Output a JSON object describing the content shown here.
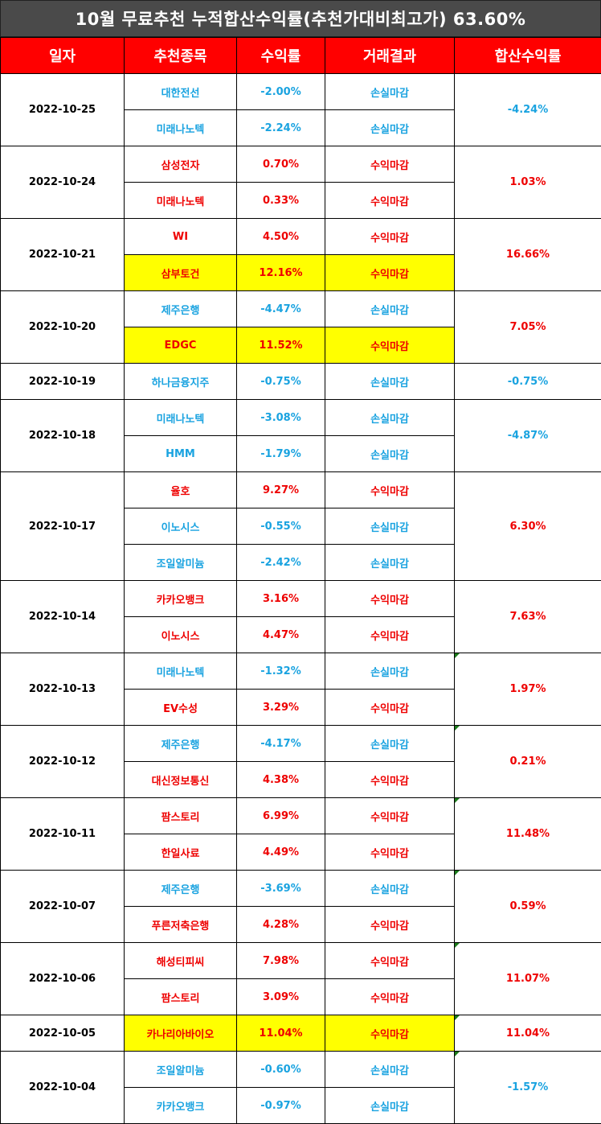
{
  "title": "10월 무료추천 누적합산수익률(추천가대비최고가) 63.60%",
  "headers": [
    "일자",
    "추천종목",
    "수익률",
    "거래결과",
    "합산수익률"
  ],
  "colors": {
    "profit": "#ee0000",
    "loss": "#1aa3e0",
    "header_bg": "#ff0000",
    "highlight": "#ffff00",
    "title_bg": "#4a4a4a"
  },
  "groups": [
    {
      "date": "2022-10-25",
      "total": "-4.24%",
      "total_type": "loss",
      "marker": false,
      "rows": [
        {
          "stock": "대한전선",
          "rate": "-2.00%",
          "result": "손실마감",
          "type": "loss",
          "highlight": false
        },
        {
          "stock": "미래나노텍",
          "rate": "-2.24%",
          "result": "손실마감",
          "type": "loss",
          "highlight": false
        }
      ]
    },
    {
      "date": "2022-10-24",
      "total": "1.03%",
      "total_type": "profit",
      "marker": false,
      "rows": [
        {
          "stock": "삼성전자",
          "rate": "0.70%",
          "result": "수익마감",
          "type": "profit",
          "highlight": false
        },
        {
          "stock": "미래나노텍",
          "rate": "0.33%",
          "result": "수익마감",
          "type": "profit",
          "highlight": false
        }
      ]
    },
    {
      "date": "2022-10-21",
      "total": "16.66%",
      "total_type": "profit",
      "marker": false,
      "rows": [
        {
          "stock": "WI",
          "rate": "4.50%",
          "result": "수익마감",
          "type": "profit",
          "highlight": false
        },
        {
          "stock": "삼부토건",
          "rate": "12.16%",
          "result": "수익마감",
          "type": "profit",
          "highlight": true
        }
      ]
    },
    {
      "date": "2022-10-20",
      "total": "7.05%",
      "total_type": "profit",
      "marker": false,
      "rows": [
        {
          "stock": "제주은행",
          "rate": "-4.47%",
          "result": "손실마감",
          "type": "loss",
          "highlight": false
        },
        {
          "stock": "EDGC",
          "rate": "11.52%",
          "result": "수익마감",
          "type": "profit",
          "highlight": true
        }
      ]
    },
    {
      "date": "2022-10-19",
      "total": "-0.75%",
      "total_type": "loss",
      "marker": false,
      "rows": [
        {
          "stock": "하나금융지주",
          "rate": "-0.75%",
          "result": "손실마감",
          "type": "loss",
          "highlight": false
        }
      ]
    },
    {
      "date": "2022-10-18",
      "total": "-4.87%",
      "total_type": "loss",
      "marker": false,
      "rows": [
        {
          "stock": "미래나노텍",
          "rate": "-3.08%",
          "result": "손실마감",
          "type": "loss",
          "highlight": false
        },
        {
          "stock": "HMM",
          "rate": "-1.79%",
          "result": "손실마감",
          "type": "loss",
          "highlight": false
        }
      ]
    },
    {
      "date": "2022-10-17",
      "total": "6.30%",
      "total_type": "profit",
      "marker": false,
      "rows": [
        {
          "stock": "율호",
          "rate": "9.27%",
          "result": "수익마감",
          "type": "profit",
          "highlight": false
        },
        {
          "stock": "이노시스",
          "rate": "-0.55%",
          "result": "손실마감",
          "type": "loss",
          "highlight": false
        },
        {
          "stock": "조일알미늄",
          "rate": "-2.42%",
          "result": "손실마감",
          "type": "loss",
          "highlight": false
        }
      ]
    },
    {
      "date": "2022-10-14",
      "total": "7.63%",
      "total_type": "profit",
      "marker": false,
      "rows": [
        {
          "stock": "카카오뱅크",
          "rate": "3.16%",
          "result": "수익마감",
          "type": "profit",
          "highlight": false
        },
        {
          "stock": "이노시스",
          "rate": "4.47%",
          "result": "수익마감",
          "type": "profit",
          "highlight": false
        }
      ]
    },
    {
      "date": "2022-10-13",
      "total": "1.97%",
      "total_type": "profit",
      "marker": true,
      "rows": [
        {
          "stock": "미래나노텍",
          "rate": "-1.32%",
          "result": "손실마감",
          "type": "loss",
          "highlight": false
        },
        {
          "stock": "EV수성",
          "rate": "3.29%",
          "result": "수익마감",
          "type": "profit",
          "highlight": false
        }
      ]
    },
    {
      "date": "2022-10-12",
      "total": "0.21%",
      "total_type": "profit",
      "marker": true,
      "rows": [
        {
          "stock": "제주은행",
          "rate": "-4.17%",
          "result": "손실마감",
          "type": "loss",
          "highlight": false
        },
        {
          "stock": "대신정보통신",
          "rate": "4.38%",
          "result": "수익마감",
          "type": "profit",
          "highlight": false
        }
      ]
    },
    {
      "date": "2022-10-11",
      "total": "11.48%",
      "total_type": "profit",
      "marker": true,
      "rows": [
        {
          "stock": "팜스토리",
          "rate": "6.99%",
          "result": "수익마감",
          "type": "profit",
          "highlight": false
        },
        {
          "stock": "한일사료",
          "rate": "4.49%",
          "result": "수익마감",
          "type": "profit",
          "highlight": false
        }
      ]
    },
    {
      "date": "2022-10-07",
      "total": "0.59%",
      "total_type": "profit",
      "marker": true,
      "rows": [
        {
          "stock": "제주은행",
          "rate": "-3.69%",
          "result": "손실마감",
          "type": "loss",
          "highlight": false
        },
        {
          "stock": "푸른저축은행",
          "rate": "4.28%",
          "result": "수익마감",
          "type": "profit",
          "highlight": false
        }
      ]
    },
    {
      "date": "2022-10-06",
      "total": "11.07%",
      "total_type": "profit",
      "marker": true,
      "rows": [
        {
          "stock": "해성티피씨",
          "rate": "7.98%",
          "result": "수익마감",
          "type": "profit",
          "highlight": false
        },
        {
          "stock": "팜스토리",
          "rate": "3.09%",
          "result": "수익마감",
          "type": "profit",
          "highlight": false
        }
      ]
    },
    {
      "date": "2022-10-05",
      "total": "11.04%",
      "total_type": "profit",
      "marker": true,
      "rows": [
        {
          "stock": "카나리아바이오",
          "rate": "11.04%",
          "result": "수익마감",
          "type": "profit",
          "highlight": true
        }
      ]
    },
    {
      "date": "2022-10-04",
      "total": "-1.57%",
      "total_type": "loss",
      "marker": true,
      "rows": [
        {
          "stock": "조일알미늄",
          "rate": "-0.60%",
          "result": "손실마감",
          "type": "loss",
          "highlight": false
        },
        {
          "stock": "카카오뱅크",
          "rate": "-0.97%",
          "result": "손실마감",
          "type": "loss",
          "highlight": false
        }
      ]
    }
  ]
}
